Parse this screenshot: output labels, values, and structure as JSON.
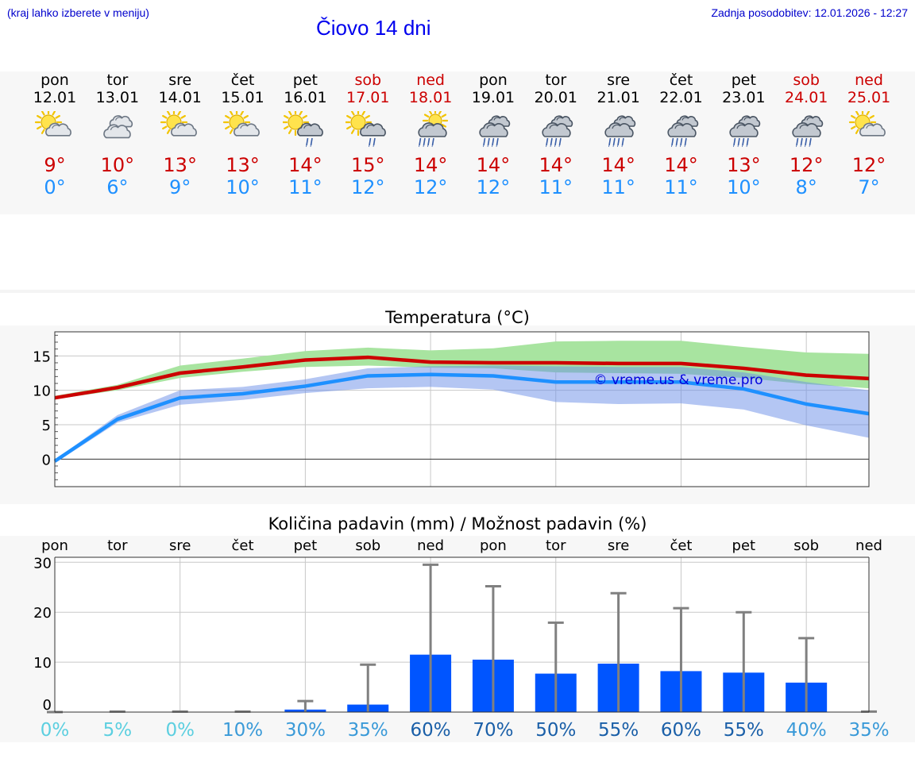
{
  "header": {
    "hint": "(kraj lahko izberete v meniju)",
    "title": "Čiovo 14 dni",
    "update": "Zadnja posodobitev: 12.01.2026 - 12:27"
  },
  "days": [
    {
      "name": "pon",
      "date": "12.01",
      "weekend": false,
      "icon": "sun-cloud-icon",
      "max": "9°",
      "min": "0°"
    },
    {
      "name": "tor",
      "date": "13.01",
      "weekend": false,
      "icon": "cloudy-icon",
      "max": "10°",
      "min": "6°"
    },
    {
      "name": "sre",
      "date": "14.01",
      "weekend": false,
      "icon": "sun-cloud-icon",
      "max": "13°",
      "min": "9°"
    },
    {
      "name": "čet",
      "date": "15.01",
      "weekend": false,
      "icon": "sun-cloud-icon",
      "max": "13°",
      "min": "10°"
    },
    {
      "name": "pet",
      "date": "16.01",
      "weekend": false,
      "icon": "sun-cloud-light-rain-icon",
      "max": "14°",
      "min": "11°"
    },
    {
      "name": "sob",
      "date": "17.01",
      "weekend": true,
      "icon": "sun-cloud-light-rain-icon",
      "max": "15°",
      "min": "12°"
    },
    {
      "name": "ned",
      "date": "18.01",
      "weekend": true,
      "icon": "sun-cloud-rain-icon",
      "max": "14°",
      "min": "12°"
    },
    {
      "name": "pon",
      "date": "19.01",
      "weekend": false,
      "icon": "cloud-rain-icon",
      "max": "14°",
      "min": "12°"
    },
    {
      "name": "tor",
      "date": "20.01",
      "weekend": false,
      "icon": "cloud-rain-icon",
      "max": "14°",
      "min": "11°"
    },
    {
      "name": "sre",
      "date": "21.01",
      "weekend": false,
      "icon": "cloud-rain-icon",
      "max": "14°",
      "min": "11°"
    },
    {
      "name": "čet",
      "date": "22.01",
      "weekend": false,
      "icon": "cloud-rain-icon",
      "max": "14°",
      "min": "11°"
    },
    {
      "name": "pet",
      "date": "23.01",
      "weekend": false,
      "icon": "cloud-rain-icon",
      "max": "13°",
      "min": "10°"
    },
    {
      "name": "sob",
      "date": "24.01",
      "weekend": true,
      "icon": "cloud-rain-icon",
      "max": "12°",
      "min": "8°"
    },
    {
      "name": "ned",
      "date": "25.01",
      "weekend": true,
      "icon": "sun-cloud-icon",
      "max": "12°",
      "min": "7°"
    }
  ],
  "colors": {
    "max": "#cc0000",
    "min": "#1e90ff",
    "bar": "#0055ff",
    "green_band": "#a8e4a0",
    "blue_band": "#a8c0f0",
    "overlap": "#7cbfa8"
  },
  "chart_data": [
    {
      "type": "line",
      "title": "Temperatura (°C)",
      "x": [
        "12.01",
        "13.01",
        "14.01",
        "15.01",
        "16.01",
        "17.01",
        "18.01",
        "19.01",
        "20.01",
        "21.01",
        "22.01",
        "23.01",
        "24.01",
        "25.01"
      ],
      "series": [
        {
          "name": "max",
          "values": [
            8.9,
            10.4,
            12.5,
            13.4,
            14.4,
            14.8,
            14.1,
            14.0,
            14.0,
            13.9,
            13.9,
            13.2,
            12.2,
            11.7
          ]
        },
        {
          "name": "min",
          "values": [
            -0.3,
            5.8,
            8.9,
            9.5,
            10.6,
            12.1,
            12.3,
            12.1,
            11.2,
            11.2,
            11.2,
            10.2,
            8.0,
            6.6
          ]
        }
      ],
      "max_range_low": [
        8.7,
        10.0,
        11.8,
        12.7,
        13.4,
        13.6,
        13.3,
        13.2,
        12.6,
        12.5,
        12.4,
        11.8,
        10.9,
        10.3
      ],
      "max_range_high": [
        9.2,
        10.8,
        13.6,
        14.6,
        15.7,
        16.2,
        15.8,
        16.1,
        17.1,
        17.2,
        17.2,
        16.3,
        15.5,
        15.3
      ],
      "min_range_low": [
        -0.6,
        5.3,
        7.9,
        8.6,
        9.6,
        10.3,
        10.5,
        10.1,
        8.3,
        8.0,
        8.1,
        7.2,
        4.9,
        3.1
      ],
      "min_range_high": [
        -0.1,
        6.4,
        10.0,
        10.5,
        11.6,
        13.2,
        13.5,
        13.6,
        13.5,
        13.4,
        13.4,
        12.6,
        11.2,
        10.0
      ],
      "ylim": [
        -4,
        18.5
      ],
      "yticks": [
        0,
        5,
        10,
        15
      ],
      "watermark": "© vreme.us & vreme.pro"
    },
    {
      "type": "bar",
      "title": "Količina padavin (mm) / Možnost padavin (%)",
      "categories": [
        "pon",
        "tor",
        "sre",
        "čet",
        "pet",
        "sob",
        "ned",
        "pon",
        "tor",
        "sre",
        "čet",
        "pet",
        "sob",
        "ned"
      ],
      "values": [
        0,
        0,
        0,
        0,
        0.5,
        1.5,
        11.5,
        10.5,
        7.7,
        9.7,
        8.2,
        7.9,
        5.9,
        0
      ],
      "error_high": [
        0,
        0.1,
        0.1,
        0.1,
        2.2,
        9.5,
        29.5,
        25.2,
        17.9,
        23.8,
        20.8,
        20.0,
        14.8,
        0.1
      ],
      "probability": [
        "0%",
        "5%",
        "0%",
        "10%",
        "30%",
        "35%",
        "60%",
        "70%",
        "50%",
        "55%",
        "60%",
        "55%",
        "40%",
        "35%"
      ],
      "ylim": [
        0,
        31
      ],
      "yticks": [
        0,
        10,
        20,
        30
      ]
    }
  ]
}
